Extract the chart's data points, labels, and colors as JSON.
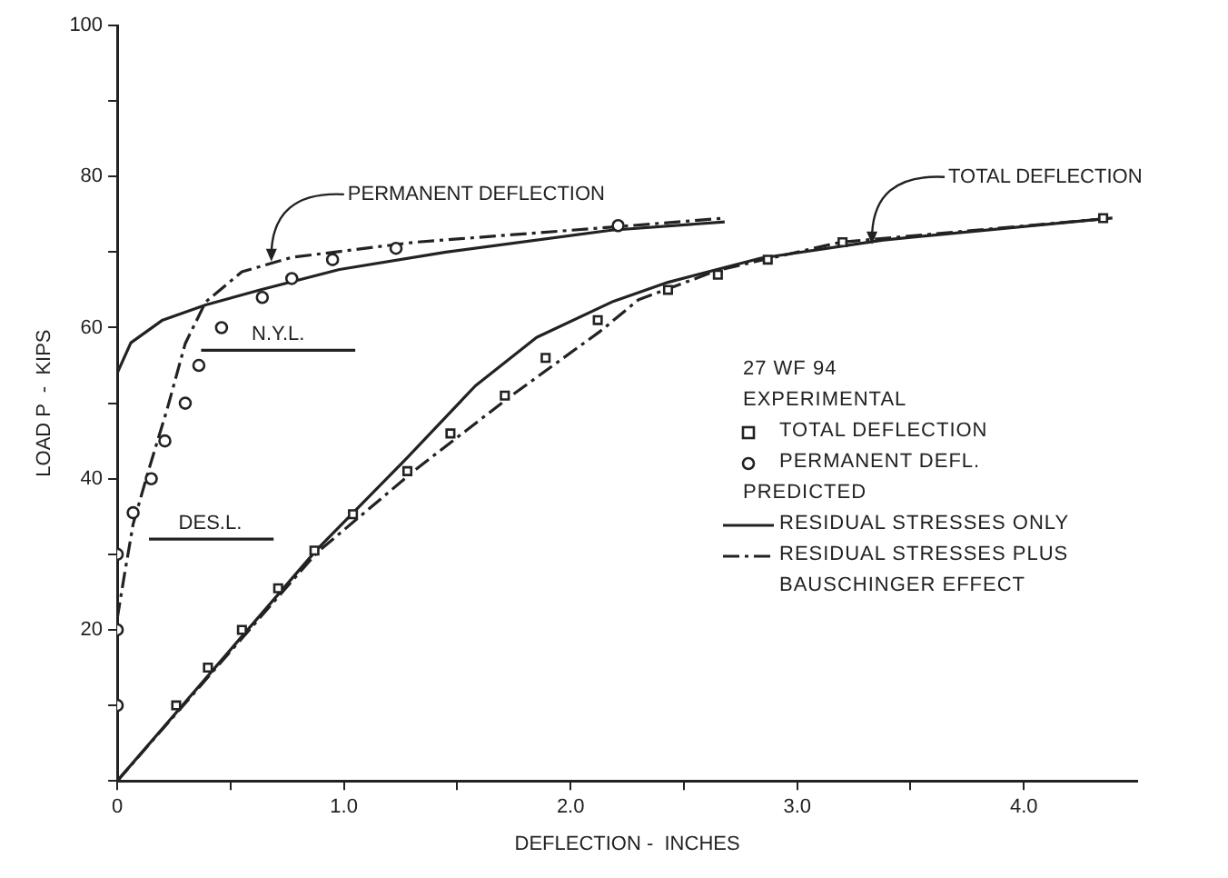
{
  "chart_data": {
    "type": "line",
    "xlabel": "DEFLECTION -  INCHES",
    "ylabel": "LOAD P  -  KIPS",
    "legend_title": "27 WF 94",
    "legend": "right",
    "grid": false,
    "xlim": [
      0,
      4.5
    ],
    "ylim": [
      0,
      100
    ],
    "xticks": [
      {
        "value": 0,
        "label": "0"
      },
      {
        "value": 0.5,
        "label": null
      },
      {
        "value": 1,
        "label": "1.0"
      },
      {
        "value": 1.5,
        "label": null
      },
      {
        "value": 2,
        "label": "2.0"
      },
      {
        "value": 2.5,
        "label": null
      },
      {
        "value": 3,
        "label": "3.0"
      },
      {
        "value": 3.5,
        "label": null
      },
      {
        "value": 4,
        "label": "4.0"
      }
    ],
    "yticks": [
      {
        "value": 0,
        "label": null
      },
      {
        "value": 10,
        "label": null
      },
      20,
      {
        "value": 30,
        "label": null
      },
      40,
      {
        "value": 50,
        "label": null
      },
      60,
      {
        "value": 70,
        "label": null
      },
      80,
      {
        "value": 90,
        "label": null
      },
      100
    ],
    "series": [
      {
        "name": "TOTAL DEFLECTION",
        "type": "scatter",
        "marker": "square",
        "color": "#222222",
        "x": [
          0.26,
          0.4,
          0.55,
          0.71,
          0.87,
          1.04,
          1.28,
          1.47,
          1.71,
          1.89,
          2.12,
          2.43,
          2.65,
          2.87,
          3.2,
          4.35
        ],
        "values": [
          10,
          15,
          20,
          25.5,
          30.5,
          35.3,
          41,
          46,
          51,
          56,
          61,
          65,
          67,
          69,
          71.3,
          74.5
        ]
      },
      {
        "name": "PERMANENT DEFL.",
        "type": "scatter",
        "marker": "circle",
        "color": "#222222",
        "x": [
          0,
          0,
          0,
          0.07,
          0.15,
          0.21,
          0.3,
          0.36,
          0.46,
          0.64,
          0.77,
          0.95,
          1.23,
          2.21
        ],
        "values": [
          10,
          20,
          30,
          35.5,
          40,
          45,
          50,
          55,
          60,
          64,
          66.5,
          69,
          70.5,
          73.5
        ]
      },
      {
        "name": "RESIDUAL STRESSES ONLY",
        "type": "line",
        "marker": "none",
        "line_style": "solid",
        "color": "#222222",
        "x": [
          0,
          0.06,
          0.2,
          0.39,
          0.63,
          0.98,
          1.45,
          2.18,
          2.68
        ],
        "values": [
          54,
          58,
          61,
          63,
          65,
          67.7,
          70,
          72.9,
          74
        ]
      },
      {
        "type": "line",
        "marker": "none",
        "line_style": "solid",
        "color": "#222222",
        "x": [
          0,
          0.88,
          1.28,
          1.58,
          1.85,
          2.19,
          2.43,
          2.84,
          3.38,
          4.39
        ],
        "values": [
          0,
          30.6,
          42.8,
          52.3,
          58.7,
          63.5,
          66,
          69.2,
          71.6,
          74.5
        ]
      },
      {
        "name": "RESIDUAL STRESSES PLUS BAUSCHINGER EFFECT",
        "type": "line",
        "marker": "none",
        "line_style": "dashed",
        "color": "#222222",
        "x": [
          0,
          0.03,
          0.07,
          0.14,
          0.22,
          0.3,
          0.39,
          0.55,
          0.77,
          1.31,
          2.18,
          2.68
        ],
        "values": [
          21.5,
          27,
          34,
          41.3,
          49.2,
          57.9,
          63.4,
          67.4,
          69.3,
          71.3,
          73.3,
          74.5
        ]
      },
      {
        "type": "line",
        "marker": "none",
        "line_style": "dashed",
        "color": "#222222",
        "x": [
          0,
          0.88,
          1.32,
          1.73,
          2.13,
          2.3,
          2.65,
          3.19,
          4.39
        ],
        "values": [
          0,
          30.2,
          41.3,
          50.8,
          59.5,
          63.7,
          67.6,
          71.3,
          74.5
        ]
      },
      {
        "type": "line",
        "marker": "none",
        "line_style": "solid",
        "color": "#222222",
        "x": [
          0.37,
          1.05
        ],
        "values": [
          57,
          57
        ]
      },
      {
        "type": "line",
        "marker": "none",
        "line_style": "solid",
        "color": "#222222",
        "x": [
          0.14,
          0.69
        ],
        "values": [
          32,
          32
        ]
      }
    ],
    "annotations": [
      "EXPERIMENTAL",
      "PREDICTED",
      {
        "text": "PERMANENT DEFLECTION",
        "x": 0.68,
        "y": 68.5
      },
      {
        "text": "TOTAL DEFLECTION",
        "x": 3.33,
        "y": 70.8
      },
      {
        "text": "N.Y.L.",
        "x": 0.71,
        "y": 57
      },
      {
        "text": "DES.L.",
        "x": 0.41,
        "y": 32
      }
    ]
  }
}
